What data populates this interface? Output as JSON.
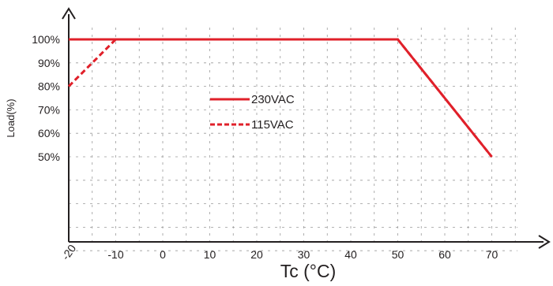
{
  "chart_data": {
    "type": "line",
    "title": "",
    "xlabel": "Tc (°C)",
    "ylabel": "Load(%)",
    "xlim": [
      -20,
      70
    ],
    "ylim": [
      0,
      100
    ],
    "x_ticks": [
      "-20",
      "-10",
      "0",
      "10",
      "20",
      "30",
      "40",
      "50",
      "60",
      "70"
    ],
    "y_ticks": [
      "50%",
      "60%",
      "70%",
      "80%",
      "90%",
      "100%"
    ],
    "grid": true,
    "legend_position": "center-left",
    "series": [
      {
        "name": "230VAC",
        "style": "solid",
        "color": "#e0202a",
        "x": [
          -20,
          50,
          70
        ],
        "y": [
          100,
          100,
          50
        ]
      },
      {
        "name": "115VAC",
        "style": "dashed",
        "color": "#e0202a",
        "x": [
          -20,
          -10,
          50,
          70
        ],
        "y": [
          80,
          100,
          100,
          50
        ]
      }
    ]
  }
}
